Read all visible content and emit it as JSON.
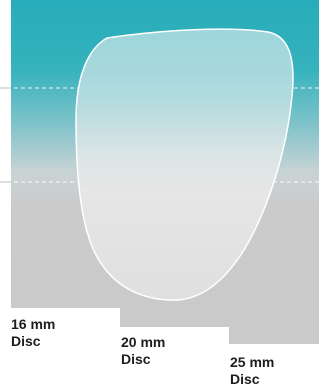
{
  "discs": [
    {
      "size": "16 mm",
      "word": "Disc"
    },
    {
      "size": "20 mm",
      "word": "Disc"
    },
    {
      "size": "25 mm",
      "word": "Disc"
    }
  ],
  "colors": {
    "teal": "#2fb3bf",
    "grey": "#cbcbcb",
    "shape_stroke": "#ffffff",
    "dash_line": "#ffffff",
    "text": "#1e1e1e"
  }
}
